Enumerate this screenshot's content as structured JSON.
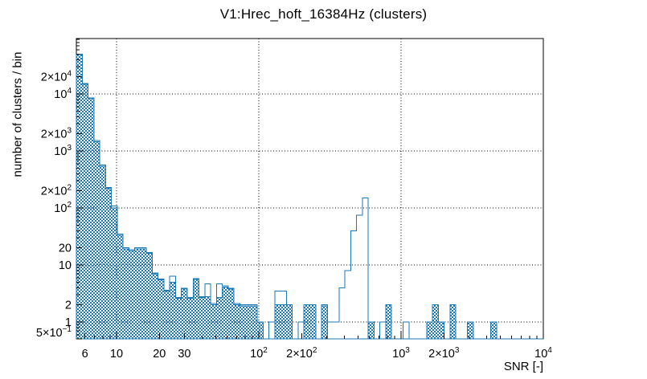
{
  "title": "V1:Hrec_hoft_16384Hz (clusters)",
  "x_axis": {
    "title": "SNR [-]",
    "min": 5.22,
    "max": 10000,
    "labeled_ticks": [
      {
        "v": 6,
        "base": "6"
      },
      {
        "v": 10,
        "base": "10"
      },
      {
        "v": 20,
        "base": "20"
      },
      {
        "v": 30,
        "base": "30"
      },
      {
        "v": 100,
        "base": "10",
        "exp": "2"
      },
      {
        "v": 200,
        "base": "2×10",
        "exp": "2"
      },
      {
        "v": 1000,
        "base": "10",
        "exp": "3"
      },
      {
        "v": 2000,
        "base": "2×10",
        "exp": "3"
      },
      {
        "v": 10000,
        "base": "10",
        "exp": "4"
      }
    ],
    "minor_ticks": [
      6,
      7,
      8,
      9,
      10,
      20,
      30,
      40,
      50,
      60,
      70,
      80,
      90,
      100,
      200,
      300,
      400,
      500,
      600,
      700,
      800,
      900,
      1000,
      2000,
      3000,
      4000,
      5000,
      6000,
      7000,
      8000,
      9000,
      10000
    ],
    "gridlines": [
      10,
      100,
      1000,
      10000
    ]
  },
  "y_axis": {
    "title": "number of clusters / bin",
    "min": 0.5,
    "max": 93700,
    "labeled_ticks": [
      {
        "v": 20000,
        "base": "2×10",
        "exp": "4"
      },
      {
        "v": 10000,
        "base": "10",
        "exp": "4"
      },
      {
        "v": 2000,
        "base": "2×10",
        "exp": "3"
      },
      {
        "v": 1000,
        "base": "10",
        "exp": "3"
      },
      {
        "v": 200,
        "base": "2×10",
        "exp": "2"
      },
      {
        "v": 100,
        "base": "10",
        "exp": "2"
      },
      {
        "v": 20,
        "base": "20"
      },
      {
        "v": 10,
        "base": "10"
      },
      {
        "v": 2,
        "base": "2"
      },
      {
        "v": 1,
        "base": "1"
      },
      {
        "v": 0.5,
        "base": "5×10",
        "exp": "−1"
      }
    ],
    "minor_ticks": [
      0.5,
      0.6,
      0.7,
      0.8,
      0.9,
      1,
      2,
      3,
      4,
      5,
      6,
      7,
      8,
      9,
      10,
      20,
      30,
      40,
      50,
      60,
      70,
      80,
      90,
      100,
      200,
      300,
      400,
      500,
      600,
      700,
      800,
      900,
      1000,
      2000,
      3000,
      4000,
      5000,
      6000,
      7000,
      8000,
      9000,
      10000,
      20000,
      30000,
      40000,
      50000,
      60000,
      70000,
      80000,
      90000
    ],
    "gridlines": [
      1,
      10,
      100,
      1000,
      10000
    ]
  },
  "chart_data": {
    "type": "bar",
    "subtype": "step-histogram",
    "x_scale": "log",
    "y_scale": "log",
    "title": "V1:Hrec_hoft_16384Hz (clusters)",
    "xlabel": "SNR [-]",
    "ylabel": "number of clusters / bin",
    "xlim": [
      5.22,
      10000
    ],
    "ylim": [
      0.5,
      93700
    ],
    "grid": true,
    "n_bins": 80,
    "snr_min": 5.22,
    "snr_max": 10000,
    "colors": {
      "histogram": "#1a78b4",
      "axes": "#000000"
    },
    "series": [
      {
        "name": "clusters-hatched",
        "style": "hatched-fill",
        "values": [
          49000,
          14800,
          8300,
          1450,
          540,
          220,
          100,
          33,
          19,
          17.5,
          19,
          19,
          16,
          7,
          5.5,
          3.5,
          5,
          2.6,
          3.8,
          2.6,
          5.6,
          2.7,
          2.8,
          2,
          2.7,
          4.1,
          3.8,
          2,
          1.9,
          1.9,
          1.9,
          1,
          0,
          0,
          2,
          2,
          2,
          0,
          0,
          2,
          2,
          0,
          1.9,
          0,
          0,
          0,
          0,
          0,
          0,
          0,
          1,
          0,
          0,
          2,
          0,
          0,
          0,
          0,
          0,
          0,
          1,
          2,
          1,
          0,
          2,
          0,
          0,
          1,
          0,
          0,
          0,
          1,
          0,
          0,
          0,
          0,
          0,
          0,
          0,
          0
        ]
      },
      {
        "name": "clusters-outline",
        "style": "line-outline",
        "values": [
          49500,
          15200,
          8500,
          1520,
          565,
          230,
          108,
          35,
          20,
          18.5,
          20,
          20,
          16.5,
          7.2,
          5.7,
          3.6,
          6.3,
          2.7,
          3.9,
          2.7,
          5.8,
          2.8,
          4.7,
          2.1,
          4.7,
          4.3,
          3.9,
          2.1,
          2,
          2,
          2,
          1,
          0,
          1,
          3.5,
          3.5,
          2,
          0,
          1,
          2,
          2,
          0,
          2,
          1,
          1,
          4,
          8,
          40,
          75,
          150,
          1,
          0,
          1,
          2,
          0,
          0,
          1,
          0,
          0,
          0,
          1,
          2,
          1,
          0,
          2,
          0,
          0,
          1,
          0,
          0,
          0,
          1,
          0,
          0,
          0,
          0,
          0,
          0,
          0,
          0
        ]
      }
    ]
  }
}
